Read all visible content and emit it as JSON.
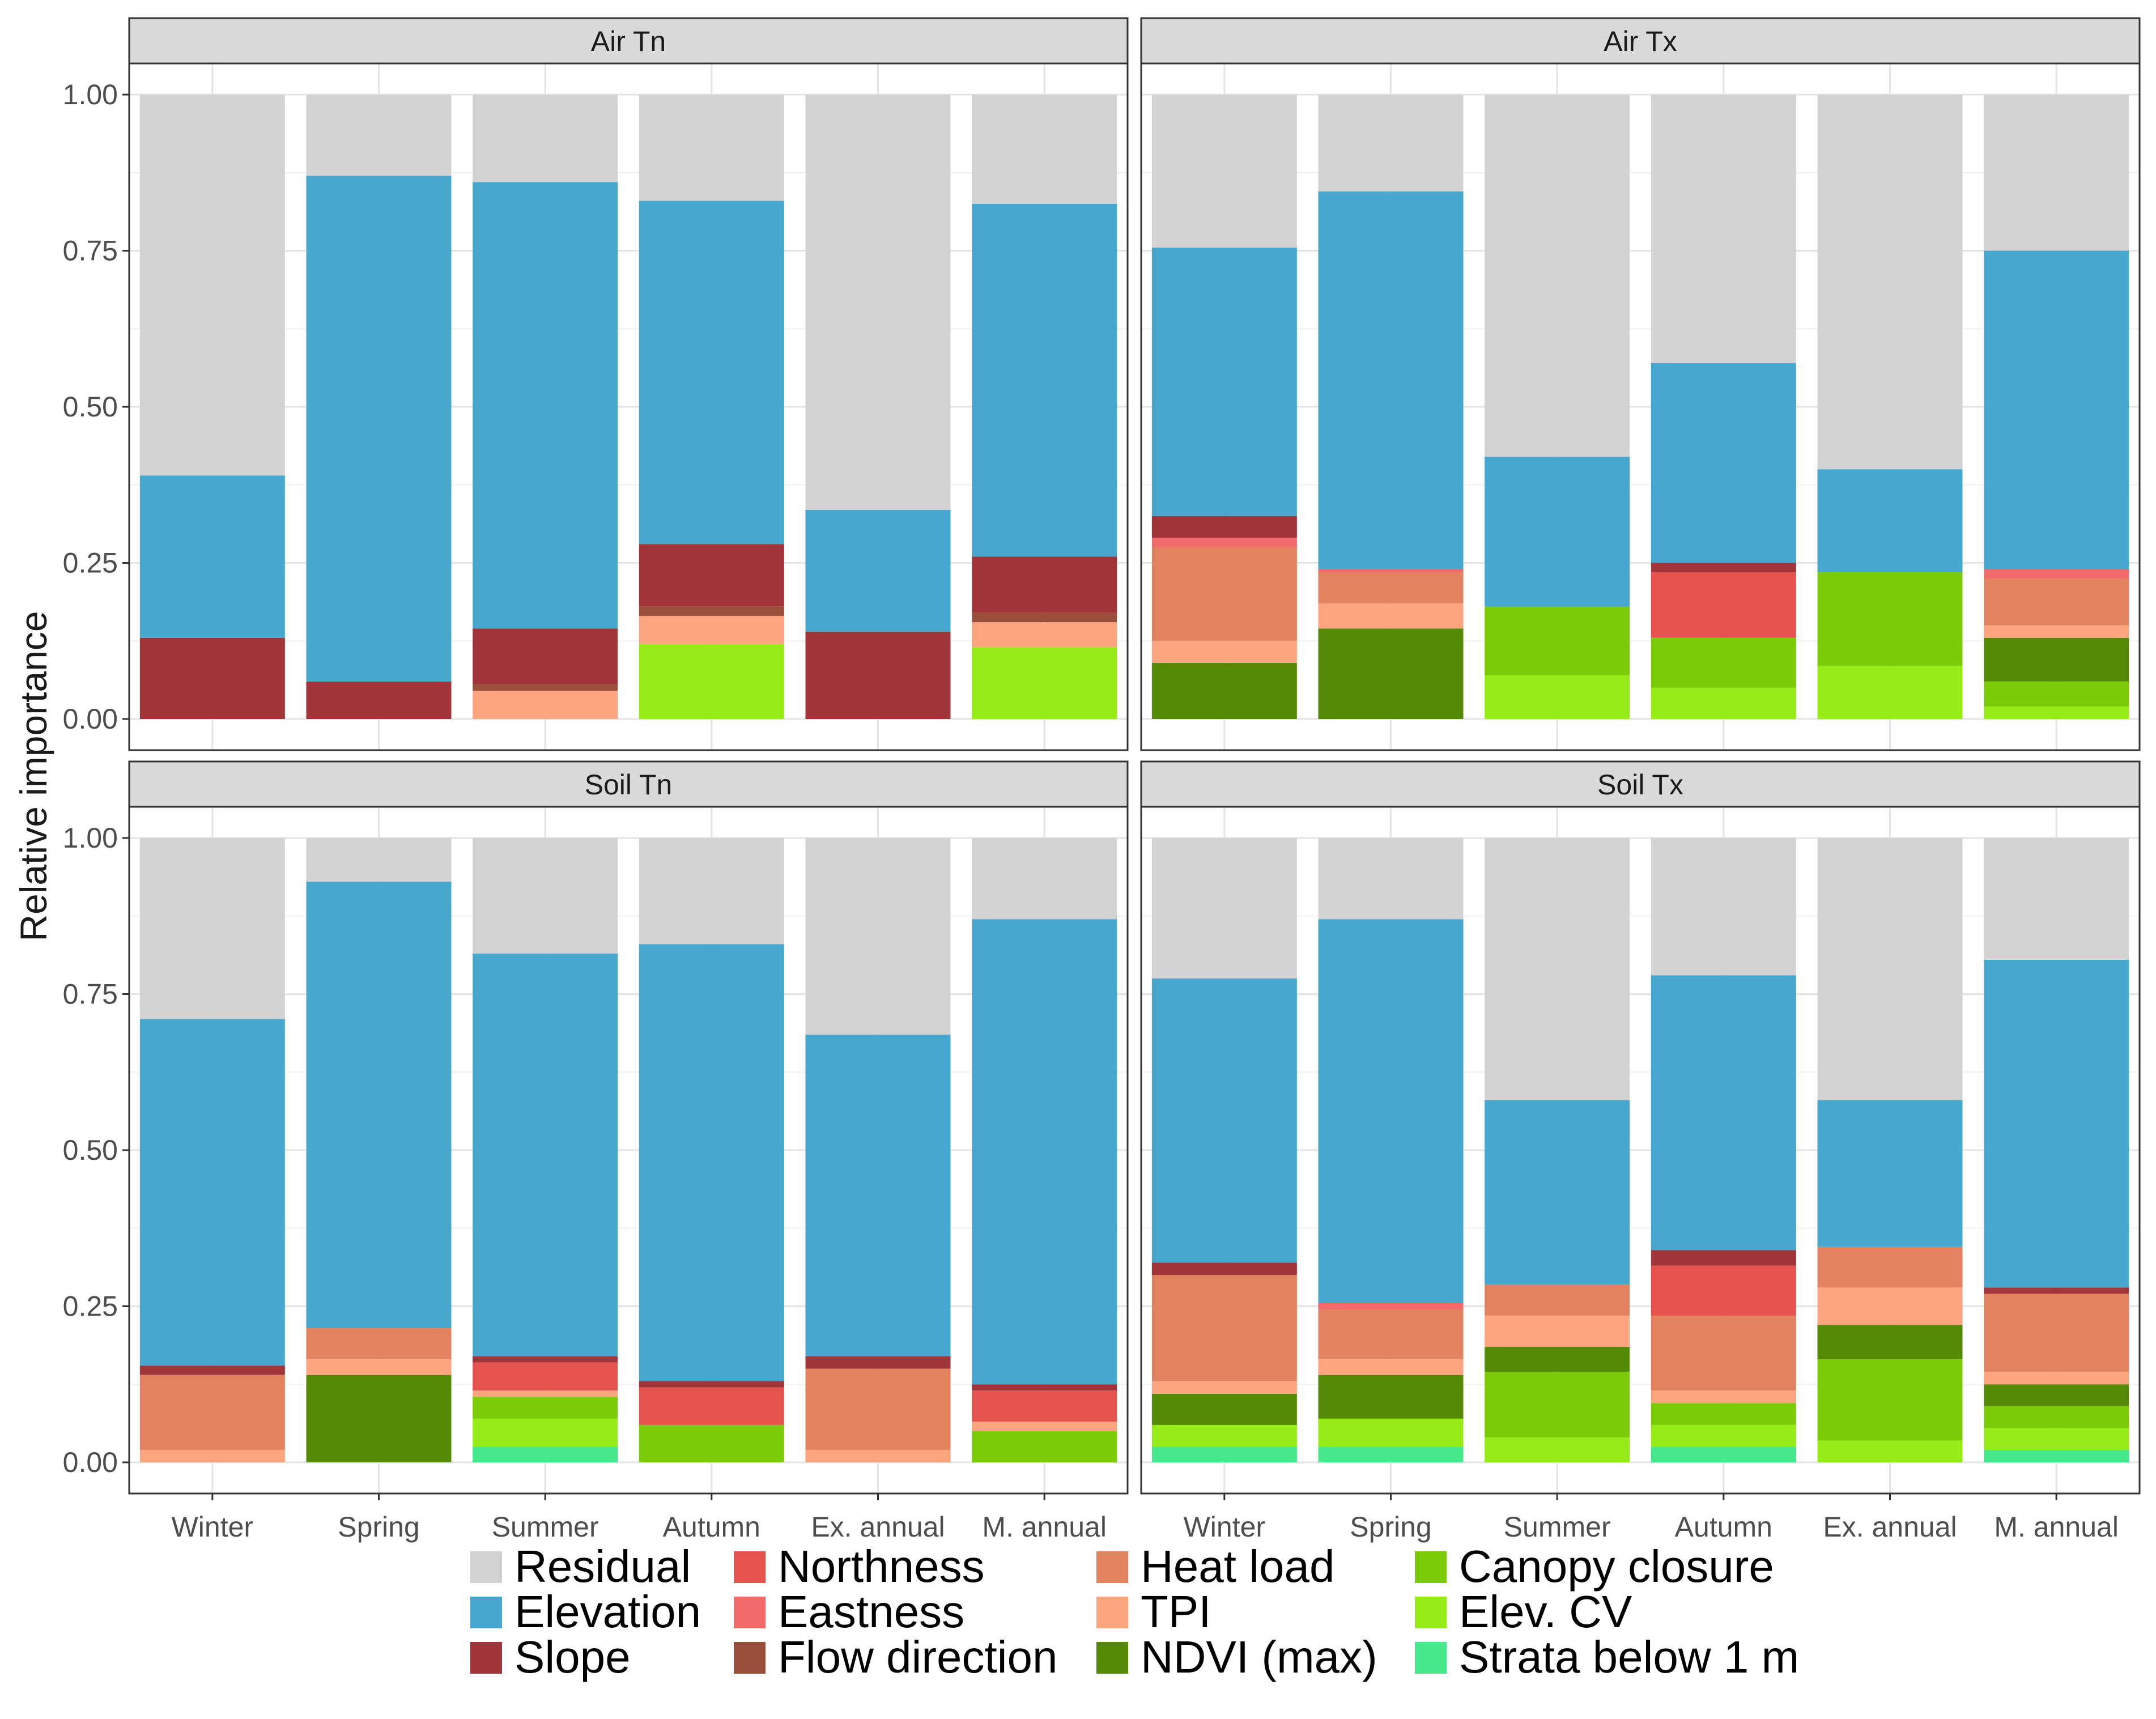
{
  "chart_data": {
    "type": "bar",
    "stacked": true,
    "ylabel": "Relative importance",
    "xlabel": "",
    "ylim": [
      0,
      1
    ],
    "yticks": [
      "0.00",
      "0.25",
      "0.50",
      "0.75",
      "1.00"
    ],
    "categories": [
      "Winter",
      "Spring",
      "Summer",
      "Autumn",
      "Ex. annual",
      "M. annual"
    ],
    "legend": [
      {
        "name": "Residual",
        "color": "#d3d3d3"
      },
      {
        "name": "Elevation",
        "color": "#48a7cf"
      },
      {
        "name": "Slope",
        "color": "#a13539"
      },
      {
        "name": "Northness",
        "color": "#e5534f"
      },
      {
        "name": "Eastness",
        "color": "#f26a6a"
      },
      {
        "name": "Flow direction",
        "color": "#9a4f3a"
      },
      {
        "name": "Heat load",
        "color": "#e3825e"
      },
      {
        "name": "TPI",
        "color": "#fca57e"
      },
      {
        "name": "NDVI (max)",
        "color": "#548a06"
      },
      {
        "name": "Canopy closure",
        "color": "#7ccb08"
      },
      {
        "name": "Elev. CV",
        "color": "#96ec16"
      },
      {
        "name": "Strata below 1 m",
        "color": "#45e88a"
      }
    ],
    "panels": [
      {
        "title": "Air Tn",
        "bars": [
          [
            [
              "Slope",
              0.13
            ],
            [
              "Elevation",
              0.26
            ],
            [
              "Residual",
              0.61
            ]
          ],
          [
            [
              "Slope",
              0.06
            ],
            [
              "Elevation",
              0.81
            ],
            [
              "Residual",
              0.13
            ]
          ],
          [
            [
              "TPI",
              0.045
            ],
            [
              "Flow direction",
              0.01
            ],
            [
              "Slope",
              0.09
            ],
            [
              "Elevation",
              0.715
            ],
            [
              "Residual",
              0.14
            ]
          ],
          [
            [
              "Elev. CV",
              0.12
            ],
            [
              "TPI",
              0.045
            ],
            [
              "Flow direction",
              0.015
            ],
            [
              "Slope",
              0.1
            ],
            [
              "Elevation",
              0.55
            ],
            [
              "Residual",
              0.17
            ]
          ],
          [
            [
              "Slope",
              0.14
            ],
            [
              "Elevation",
              0.195
            ],
            [
              "Residual",
              0.665
            ]
          ],
          [
            [
              "Elev. CV",
              0.115
            ],
            [
              "TPI",
              0.04
            ],
            [
              "Flow direction",
              0.015
            ],
            [
              "Slope",
              0.09
            ],
            [
              "Elevation",
              0.565
            ],
            [
              "Residual",
              0.175
            ]
          ]
        ]
      },
      {
        "title": "Air Tx",
        "bars": [
          [
            [
              "NDVI (max)",
              0.09
            ],
            [
              "TPI",
              0.035
            ],
            [
              "Heat load",
              0.15
            ],
            [
              "Eastness",
              0.015
            ],
            [
              "Slope",
              0.035
            ],
            [
              "Elevation",
              0.43
            ],
            [
              "Residual",
              0.245
            ]
          ],
          [
            [
              "NDVI (max)",
              0.145
            ],
            [
              "TPI",
              0.04
            ],
            [
              "Heat load",
              0.05
            ],
            [
              "Eastness",
              0.005
            ],
            [
              "Elevation",
              0.605
            ],
            [
              "Residual",
              0.155
            ]
          ],
          [
            [
              "Elev. CV",
              0.07
            ],
            [
              "Canopy closure",
              0.11
            ],
            [
              "Elevation",
              0.24
            ],
            [
              "Residual",
              0.58
            ]
          ],
          [
            [
              "Elev. CV",
              0.05
            ],
            [
              "Canopy closure",
              0.08
            ],
            [
              "Northness",
              0.105
            ],
            [
              "Slope",
              0.015
            ],
            [
              "Elevation",
              0.32
            ],
            [
              "Residual",
              0.43
            ]
          ],
          [
            [
              "Elev. CV",
              0.085
            ],
            [
              "Canopy closure",
              0.15
            ],
            [
              "Elevation",
              0.165
            ],
            [
              "Residual",
              0.6
            ]
          ],
          [
            [
              "Elev. CV",
              0.02
            ],
            [
              "Canopy closure",
              0.04
            ],
            [
              "NDVI (max)",
              0.07
            ],
            [
              "TPI",
              0.02
            ],
            [
              "Heat load",
              0.075
            ],
            [
              "Eastness",
              0.015
            ],
            [
              "Elevation",
              0.51
            ],
            [
              "Residual",
              0.25
            ]
          ]
        ]
      },
      {
        "title": "Soil Tn",
        "bars": [
          [
            [
              "TPI",
              0.02
            ],
            [
              "Heat load",
              0.12
            ],
            [
              "Slope",
              0.015
            ],
            [
              "Elevation",
              0.555
            ],
            [
              "Residual",
              0.29
            ]
          ],
          [
            [
              "NDVI (max)",
              0.14
            ],
            [
              "TPI",
              0.025
            ],
            [
              "Heat load",
              0.05
            ],
            [
              "Elevation",
              0.715
            ],
            [
              "Residual",
              0.07
            ]
          ],
          [
            [
              "Strata below 1 m",
              0.025
            ],
            [
              "Elev. CV",
              0.045
            ],
            [
              "Canopy closure",
              0.035
            ],
            [
              "TPI",
              0.01
            ],
            [
              "Northness",
              0.045
            ],
            [
              "Slope",
              0.01
            ],
            [
              "Elevation",
              0.645
            ],
            [
              "Residual",
              0.185
            ]
          ],
          [
            [
              "Canopy closure",
              0.06
            ],
            [
              "Northness",
              0.06
            ],
            [
              "Slope",
              0.01
            ],
            [
              "Elevation",
              0.7
            ],
            [
              "Residual",
              0.17
            ]
          ],
          [
            [
              "TPI",
              0.02
            ],
            [
              "Heat load",
              0.13
            ],
            [
              "Slope",
              0.02
            ],
            [
              "Elevation",
              0.515
            ],
            [
              "Residual",
              0.315
            ]
          ],
          [
            [
              "Canopy closure",
              0.05
            ],
            [
              "TPI",
              0.015
            ],
            [
              "Northness",
              0.05
            ],
            [
              "Slope",
              0.01
            ],
            [
              "Elevation",
              0.745
            ],
            [
              "Residual",
              0.13
            ]
          ]
        ]
      },
      {
        "title": "Soil Tx",
        "bars": [
          [
            [
              "Strata below 1 m",
              0.025
            ],
            [
              "Elev. CV",
              0.035
            ],
            [
              "NDVI (max)",
              0.05
            ],
            [
              "TPI",
              0.02
            ],
            [
              "Heat load",
              0.17
            ],
            [
              "Slope",
              0.02
            ],
            [
              "Elevation",
              0.455
            ],
            [
              "Residual",
              0.225
            ]
          ],
          [
            [
              "Strata below 1 m",
              0.025
            ],
            [
              "Elev. CV",
              0.045
            ],
            [
              "NDVI (max)",
              0.07
            ],
            [
              "TPI",
              0.025
            ],
            [
              "Heat load",
              0.08
            ],
            [
              "Eastness",
              0.01
            ],
            [
              "Elevation",
              0.615
            ],
            [
              "Residual",
              0.13
            ]
          ],
          [
            [
              "Elev. CV",
              0.04
            ],
            [
              "Canopy closure",
              0.105
            ],
            [
              "NDVI (max)",
              0.04
            ],
            [
              "TPI",
              0.05
            ],
            [
              "Heat load",
              0.05
            ],
            [
              "Elevation",
              0.295
            ],
            [
              "Residual",
              0.42
            ]
          ],
          [
            [
              "Strata below 1 m",
              0.025
            ],
            [
              "Elev. CV",
              0.035
            ],
            [
              "Canopy closure",
              0.035
            ],
            [
              "TPI",
              0.02
            ],
            [
              "Heat load",
              0.12
            ],
            [
              "Northness",
              0.08
            ],
            [
              "Slope",
              0.025
            ],
            [
              "Elevation",
              0.44
            ],
            [
              "Residual",
              0.22
            ]
          ],
          [
            [
              "Elev. CV",
              0.035
            ],
            [
              "Canopy closure",
              0.13
            ],
            [
              "NDVI (max)",
              0.055
            ],
            [
              "TPI",
              0.06
            ],
            [
              "Heat load",
              0.065
            ],
            [
              "Elevation",
              0.235
            ],
            [
              "Residual",
              0.42
            ]
          ],
          [
            [
              "Strata below 1 m",
              0.02
            ],
            [
              "Elev. CV",
              0.035
            ],
            [
              "Canopy closure",
              0.035
            ],
            [
              "NDVI (max)",
              0.035
            ],
            [
              "TPI",
              0.02
            ],
            [
              "Heat load",
              0.125
            ],
            [
              "Slope",
              0.01
            ],
            [
              "Elevation",
              0.525
            ],
            [
              "Residual",
              0.195
            ]
          ]
        ]
      }
    ]
  }
}
